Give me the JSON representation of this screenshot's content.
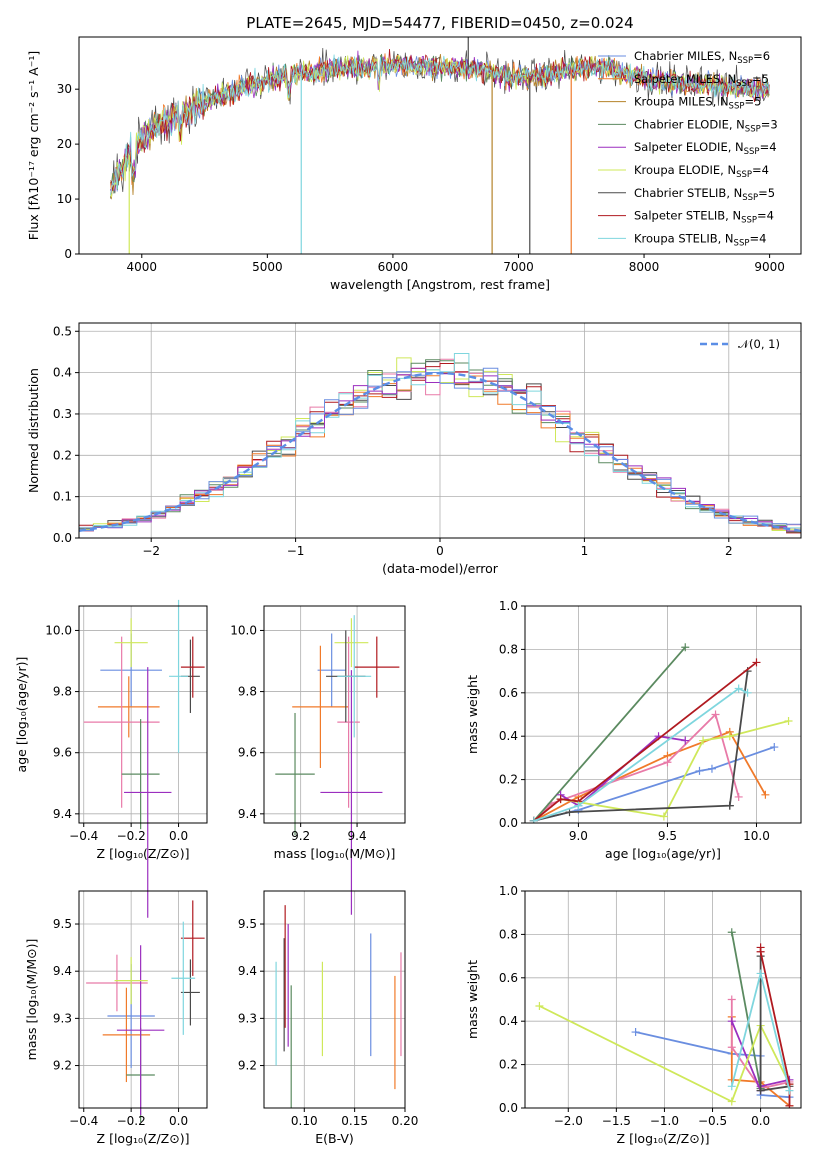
{
  "colors": {
    "Chabrier MILES": "#6a8ee0",
    "Salpeter MILES": "#f07a2a",
    "Kroupa MILES": "#b5832a",
    "Chabrier ELODIE": "#5b8a60",
    "Salpeter ELODIE": "#9b2fbf",
    "Kroupa ELODIE": "#cfe85a",
    "Chabrier STELIB": "#4a4a4a",
    "Salpeter STELIB": "#b01a20",
    "Kroupa STELIB": "#7fd6de",
    "extra_pink": "#e87aa8",
    "gaussian": "#5b8ee6"
  },
  "chart_data": [
    {
      "type": "line",
      "title": "PLATE=2645, MJD=54477, FIBERID=0450, z=0.024",
      "xlabel": "wavelength [Angstrom, rest frame]",
      "ylabel": "Flux [fλ10⁻¹⁷ erg cm⁻² s⁻¹ A⁻¹]",
      "xlim": [
        3500,
        9250
      ],
      "ylim": [
        0,
        39.5
      ],
      "xticks": [
        "4000",
        "5000",
        "6000",
        "7000",
        "8000",
        "9000"
      ],
      "yticks": [
        "0",
        "10",
        "20",
        "30"
      ],
      "grid": false,
      "legend_position": "upper-right",
      "series": [
        {
          "name": "Chabrier MILES, N",
          "sub": "SSP",
          "tail": "=6"
        },
        {
          "name": "Salpeter MILES, N",
          "sub": "SSP",
          "tail": "=5"
        },
        {
          "name": "Kroupa MILES, N",
          "sub": "SSP",
          "tail": "=5"
        },
        {
          "name": "Chabrier ELODIE, N",
          "sub": "SSP",
          "tail": "=3"
        },
        {
          "name": "Salpeter ELODIE, N",
          "sub": "SSP",
          "tail": "=4"
        },
        {
          "name": "Kroupa ELODIE, N",
          "sub": "SSP",
          "tail": "=4"
        },
        {
          "name": "Chabrier STELIB, N",
          "sub": "SSP",
          "tail": "=5"
        },
        {
          "name": "Salpeter STELIB, N",
          "sub": "SSP",
          "tail": "=4"
        },
        {
          "name": "Kroupa STELIB, N",
          "sub": "SSP",
          "tail": "=4"
        }
      ],
      "continuum": {
        "x": [
          3750,
          3850,
          3950,
          4100,
          4300,
          4500,
          4700,
          4900,
          5100,
          5300,
          5500,
          5700,
          5900,
          6100,
          6300,
          6500,
          6700,
          6900,
          7100,
          7300,
          7500,
          7700,
          7900,
          8100,
          8300,
          8500,
          8700,
          8900,
          9000
        ],
        "y": [
          12,
          16,
          20,
          23,
          25.5,
          27.5,
          29.5,
          31,
          32,
          33,
          33.5,
          34,
          34.5,
          34.5,
          34,
          34,
          33.5,
          32.5,
          32,
          33,
          34,
          34,
          32.5,
          31.5,
          31,
          31,
          30.5,
          30,
          30
        ]
      },
      "spikes": [
        {
          "x": 5270,
          "y": 0
        },
        {
          "x": 6790,
          "y": 0
        },
        {
          "x": 7090,
          "y": 0
        },
        {
          "x": 7420,
          "y": 0
        },
        {
          "x": 3900,
          "y": 0
        },
        {
          "x": 6600,
          "y": 39.5
        }
      ]
    },
    {
      "type": "histogram",
      "xlabel": "(data-model)/error",
      "ylabel": "Normed distribution",
      "xlim": [
        -2.5,
        2.5
      ],
      "ylim": [
        0,
        0.52
      ],
      "xticks": [
        "−2",
        "−1",
        "0",
        "1",
        "2"
      ],
      "yticks": [
        "0.0",
        "0.1",
        "0.2",
        "0.3",
        "0.4",
        "0.5"
      ],
      "grid": true,
      "legend_position": "upper-right",
      "gaussian_label": "𝒩(0, 1)",
      "bin_width": 0.1
    },
    {
      "type": "scatter",
      "xlabel": "Z [log₁₀(Z/Z⊙)]",
      "ylabel": "age  [log₁₀(age/yr)]",
      "xlim": [
        -0.42,
        0.12
      ],
      "ylim": [
        9.37,
        10.08
      ],
      "xticks": [
        "−0.4",
        "−0.2",
        "0.0"
      ],
      "yticks": [
        "9.4",
        "9.6",
        "9.8",
        "10.0"
      ],
      "points": [
        {
          "x": -0.2,
          "y": 9.87,
          "xerr": 0.13,
          "yerr": 0.12,
          "c": "Chabrier MILES"
        },
        {
          "x": -0.21,
          "y": 9.75,
          "xerr": 0.13,
          "yerr": 0.1,
          "c": "Salpeter MILES"
        },
        {
          "x": -0.24,
          "y": 9.7,
          "xerr": 0.16,
          "yerr": 0.28,
          "c": "extra_pink"
        },
        {
          "x": -0.16,
          "y": 9.53,
          "xerr": 0.08,
          "yerr": 0.18,
          "c": "Chabrier ELODIE"
        },
        {
          "x": -0.13,
          "y": 9.47,
          "xerr": 0.1,
          "yerr": 0.41,
          "c": "Salpeter ELODIE"
        },
        {
          "x": -0.2,
          "y": 9.96,
          "xerr": 0.07,
          "yerr": 0.08,
          "c": "Kroupa ELODIE"
        },
        {
          "x": 0.05,
          "y": 9.85,
          "xerr": 0.04,
          "yerr": 0.12,
          "c": "Chabrier STELIB"
        },
        {
          "x": 0.06,
          "y": 9.88,
          "xerr": 0.05,
          "yerr": 0.1,
          "c": "Salpeter STELIB"
        },
        {
          "x": 0.0,
          "y": 9.85,
          "xerr": 0.04,
          "yerr": 0.25,
          "c": "Kroupa STELIB"
        }
      ]
    },
    {
      "type": "scatter",
      "xlabel": "mass [log₁₀(M/M⊙)]",
      "ylabel": "",
      "xlim": [
        9.07,
        9.57
      ],
      "ylim": [
        9.37,
        10.08
      ],
      "xticks": [
        "9.2",
        "9.4"
      ],
      "yticks": [
        "9.4",
        "9.6",
        "9.8",
        "10.0"
      ],
      "points": [
        {
          "x": 9.31,
          "y": 9.87,
          "xerr": 0.05,
          "yerr": 0.12,
          "c": "Chabrier MILES"
        },
        {
          "x": 9.27,
          "y": 9.75,
          "xerr": 0.1,
          "yerr": 0.2,
          "c": "Salpeter MILES"
        },
        {
          "x": 9.37,
          "y": 9.7,
          "xerr": 0.04,
          "yerr": 0.28,
          "c": "extra_pink"
        },
        {
          "x": 9.18,
          "y": 9.53,
          "xerr": 0.07,
          "yerr": 0.2,
          "c": "Chabrier ELODIE"
        },
        {
          "x": 9.38,
          "y": 9.47,
          "xerr": 0.11,
          "yerr": 0.4,
          "c": "Salpeter ELODIE"
        },
        {
          "x": 9.38,
          "y": 9.96,
          "xerr": 0.06,
          "yerr": 0.08,
          "c": "Kroupa ELODIE"
        },
        {
          "x": 9.36,
          "y": 9.85,
          "xerr": 0.07,
          "yerr": 0.15,
          "c": "Chabrier STELIB"
        },
        {
          "x": 9.47,
          "y": 9.88,
          "xerr": 0.08,
          "yerr": 0.1,
          "c": "Salpeter STELIB"
        },
        {
          "x": 9.39,
          "y": 9.85,
          "xerr": 0.06,
          "yerr": 0.2,
          "c": "Kroupa STELIB"
        }
      ]
    },
    {
      "type": "line",
      "xlabel": "age  [log₁₀(age/yr)]",
      "ylabel": "mass weight",
      "xlim": [
        8.7,
        10.25
      ],
      "ylim": [
        0,
        1
      ],
      "xticks": [
        "9.0",
        "9.5",
        "10.0"
      ],
      "yticks": [
        "0.0",
        "0.2",
        "0.4",
        "0.6",
        "0.8",
        "1.0"
      ],
      "series": [
        {
          "c": "Chabrier MILES",
          "x": [
            8.75,
            9.0,
            9.68,
            9.75,
            10.1
          ],
          "y": [
            0.01,
            0.06,
            0.24,
            0.25,
            0.35
          ]
        },
        {
          "c": "Salpeter MILES",
          "x": [
            8.75,
            9.0,
            9.5,
            9.85,
            10.05
          ],
          "y": [
            0.01,
            0.12,
            0.31,
            0.42,
            0.13
          ]
        },
        {
          "c": "extra_pink",
          "x": [
            8.75,
            8.85,
            9.5,
            9.77,
            9.9
          ],
          "y": [
            0.01,
            0.09,
            0.28,
            0.5,
            0.12
          ]
        },
        {
          "c": "Chabrier ELODIE",
          "x": [
            8.75,
            9.6
          ],
          "y": [
            0.01,
            0.81
          ]
        },
        {
          "c": "Salpeter ELODIE",
          "x": [
            8.9,
            9.0,
            9.45,
            9.6
          ],
          "y": [
            0.13,
            0.08,
            0.4,
            0.38
          ]
        },
        {
          "c": "Kroupa ELODIE",
          "x": [
            8.9,
            9.48,
            9.7,
            9.85,
            10.18
          ],
          "y": [
            0.11,
            0.03,
            0.38,
            0.4,
            0.47
          ]
        },
        {
          "c": "Chabrier STELIB",
          "x": [
            8.75,
            8.95,
            9.85,
            9.95,
            9.85
          ],
          "y": [
            0.01,
            0.05,
            0.08,
            0.7,
            0.08
          ]
        },
        {
          "c": "Salpeter STELIB",
          "x": [
            8.75,
            8.9,
            9.0,
            10.0
          ],
          "y": [
            0.01,
            0.11,
            0.1,
            0.74
          ]
        },
        {
          "c": "Kroupa STELIB",
          "x": [
            8.75,
            9.0,
            9.9,
            9.95
          ],
          "y": [
            0.01,
            0.08,
            0.62,
            0.6
          ]
        }
      ]
    },
    {
      "type": "scatter",
      "xlabel": "Z [log₁₀(Z/Z⊙)]",
      "ylabel": "mass [log₁₀(M/M⊙)]",
      "xlim": [
        -0.42,
        0.12
      ],
      "ylim": [
        9.11,
        9.57
      ],
      "xticks": [
        "−0.4",
        "−0.2",
        "0.0"
      ],
      "yticks": [
        "9.2",
        "9.3",
        "9.4",
        "9.5"
      ],
      "points": [
        {
          "x": -0.2,
          "y": 9.305,
          "xerr": 0.1,
          "yerr": 0.11,
          "c": "Chabrier MILES"
        },
        {
          "x": -0.22,
          "y": 9.265,
          "xerr": 0.1,
          "yerr": 0.1,
          "c": "Salpeter MILES"
        },
        {
          "x": -0.26,
          "y": 9.375,
          "xerr": 0.13,
          "yerr": 0.06,
          "c": "extra_pink"
        },
        {
          "x": -0.16,
          "y": 9.18,
          "xerr": 0.06,
          "yerr": 0.1,
          "c": "Chabrier ELODIE"
        },
        {
          "x": -0.16,
          "y": 9.275,
          "xerr": 0.1,
          "yerr": 0.18,
          "c": "Salpeter ELODIE"
        },
        {
          "x": -0.2,
          "y": 9.38,
          "xerr": 0.07,
          "yerr": 0.05,
          "c": "Kroupa ELODIE"
        },
        {
          "x": 0.05,
          "y": 9.355,
          "xerr": 0.04,
          "yerr": 0.07,
          "c": "Chabrier STELIB"
        },
        {
          "x": 0.06,
          "y": 9.47,
          "xerr": 0.05,
          "yerr": 0.08,
          "c": "Salpeter STELIB"
        },
        {
          "x": 0.02,
          "y": 9.385,
          "xerr": 0.05,
          "yerr": 0.12,
          "c": "Kroupa STELIB"
        }
      ]
    },
    {
      "type": "scatter",
      "xlabel": "E(B-V)",
      "ylabel": "",
      "xlim": [
        0.06,
        0.2
      ],
      "ylim": [
        9.11,
        9.57
      ],
      "xticks": [
        "0.10",
        "0.15",
        "0.20"
      ],
      "yticks": [
        "9.2",
        "9.3",
        "9.4",
        "9.5"
      ],
      "points": [
        {
          "x": 0.166,
          "y": 9.35,
          "xerr": 0,
          "yerr": 0.13,
          "c": "Chabrier MILES"
        },
        {
          "x": 0.196,
          "y": 9.33,
          "xerr": 0,
          "yerr": 0.11,
          "c": "extra_pink"
        },
        {
          "x": 0.19,
          "y": 9.27,
          "xerr": 0,
          "yerr": 0.12,
          "c": "Salpeter MILES"
        },
        {
          "x": 0.087,
          "y": 9.24,
          "xerr": 0,
          "yerr": 0.13,
          "c": "Chabrier ELODIE"
        },
        {
          "x": 0.084,
          "y": 9.37,
          "xerr": 0,
          "yerr": 0.13,
          "c": "Salpeter ELODIE"
        },
        {
          "x": 0.118,
          "y": 9.32,
          "xerr": 0,
          "yerr": 0.1,
          "c": "Kroupa ELODIE"
        },
        {
          "x": 0.08,
          "y": 9.35,
          "xerr": 0,
          "yerr": 0.12,
          "c": "Chabrier STELIB"
        },
        {
          "x": 0.081,
          "y": 9.41,
          "xerr": 0,
          "yerr": 0.13,
          "c": "Salpeter STELIB"
        },
        {
          "x": 0.072,
          "y": 9.31,
          "xerr": 0,
          "yerr": 0.11,
          "c": "Kroupa STELIB"
        }
      ]
    },
    {
      "type": "line",
      "xlabel": "Z [log₁₀(Z/Z⊙)]",
      "ylabel": "mass weight",
      "xlim": [
        -2.45,
        0.42
      ],
      "ylim": [
        0,
        1
      ],
      "xticks": [
        "−2.0",
        "−1.5",
        "−1.0",
        "−0.5",
        "0.0"
      ],
      "yticks": [
        "0.0",
        "0.2",
        "0.4",
        "0.6",
        "0.8",
        "1.0"
      ],
      "series": [
        {
          "c": "Chabrier MILES",
          "x": [
            -1.3,
            -0.3,
            0.0,
            0.0,
            0.3
          ],
          "y": [
            0.35,
            0.25,
            0.24,
            0.06,
            0.05
          ]
        },
        {
          "c": "Salpeter MILES",
          "x": [
            -0.3,
            -0.3,
            0.0,
            0.3
          ],
          "y": [
            0.42,
            0.13,
            0.12,
            0.01
          ]
        },
        {
          "c": "extra_pink",
          "x": [
            -0.3,
            -0.3,
            0.0,
            0.3
          ],
          "y": [
            0.5,
            0.28,
            0.09,
            0.12
          ]
        },
        {
          "c": "Chabrier ELODIE",
          "x": [
            -0.3,
            0.0
          ],
          "y": [
            0.81,
            0.09
          ]
        },
        {
          "c": "Salpeter ELODIE",
          "x": [
            -0.3,
            0.0,
            0.0,
            0.3
          ],
          "y": [
            0.4,
            0.08,
            0.1,
            0.13
          ]
        },
        {
          "c": "Kroupa ELODIE",
          "x": [
            -2.3,
            -0.3,
            0.0,
            0.3
          ],
          "y": [
            0.47,
            0.03,
            0.38,
            0.11
          ]
        },
        {
          "c": "Chabrier STELIB",
          "x": [
            0.0,
            0.0,
            0.3
          ],
          "y": [
            0.7,
            0.08,
            0.1
          ]
        },
        {
          "c": "Salpeter STELIB",
          "x": [
            0.0,
            0.0,
            0.3,
            0.3
          ],
          "y": [
            0.74,
            0.72,
            0.11,
            0.01
          ]
        },
        {
          "c": "Kroupa STELIB",
          "x": [
            -0.3,
            0.0,
            0.3
          ],
          "y": [
            0.1,
            0.62,
            0.08
          ]
        }
      ]
    }
  ]
}
